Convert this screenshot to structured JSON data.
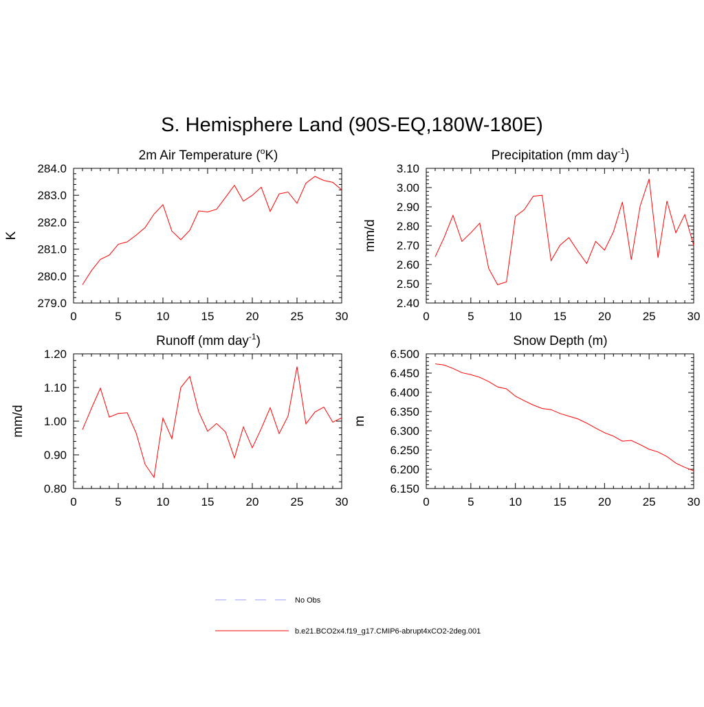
{
  "title": "S. Hemisphere Land (90S-EQ,180W-180E)",
  "legend": [
    {
      "label": "No Obs",
      "style": "dashed",
      "color": "#9999ff"
    },
    {
      "label": "b.e21.BCO2x4.f19_g17.CMIP6-abrupt4xCO2-2deg.001",
      "style": "solid",
      "color": "#ff0000"
    }
  ],
  "chart_data": [
    {
      "type": "line",
      "title": "2m Air Temperature (",
      "title_sup": "o",
      "title_tail": "K)",
      "ylabel": "K",
      "xlim": [
        0,
        30
      ],
      "ylim": [
        279.0,
        284.0
      ],
      "x_ticks": [
        0,
        5,
        10,
        15,
        20,
        25,
        30
      ],
      "x_tick_labels": [
        "0",
        "5",
        "10",
        "15",
        "20",
        "25",
        "30"
      ],
      "y_ticks": [
        279.0,
        280.0,
        281.0,
        282.0,
        283.0,
        284.0
      ],
      "y_tick_labels": [
        "279.0",
        "280.0",
        "281.0",
        "282.0",
        "283.0",
        "284.0"
      ],
      "x_minor_step": 1,
      "y_minor_step": 0.2,
      "line_color": "#ff0000",
      "x": [
        1,
        2,
        3,
        4,
        5,
        6,
        7,
        8,
        9,
        10,
        11,
        12,
        13,
        14,
        15,
        16,
        17,
        18,
        19,
        20,
        21,
        22,
        23,
        24,
        25,
        26,
        27,
        28,
        29,
        30
      ],
      "values": [
        279.68,
        280.2,
        280.62,
        280.78,
        281.18,
        281.27,
        281.52,
        281.8,
        282.3,
        282.65,
        281.67,
        281.35,
        281.7,
        282.42,
        282.38,
        282.48,
        282.92,
        283.37,
        282.78,
        283.0,
        283.3,
        282.4,
        283.05,
        283.12,
        282.7,
        283.45,
        283.7,
        283.55,
        283.48,
        283.2
      ]
    },
    {
      "type": "line",
      "title": "Precipitation (mm day",
      "title_sup": "-1",
      "title_tail": ")",
      "ylabel": "mm/d",
      "xlim": [
        0,
        30
      ],
      "ylim": [
        2.4,
        3.1
      ],
      "x_ticks": [
        0,
        5,
        10,
        15,
        20,
        25,
        30
      ],
      "x_tick_labels": [
        "0",
        "5",
        "10",
        "15",
        "20",
        "25",
        "30"
      ],
      "y_ticks": [
        2.4,
        2.5,
        2.6,
        2.7,
        2.8,
        2.9,
        3.0,
        3.1
      ],
      "y_tick_labels": [
        "2.40",
        "2.50",
        "2.60",
        "2.70",
        "2.80",
        "2.90",
        "3.00",
        "3.10"
      ],
      "x_minor_step": 1,
      "y_minor_step": 0.02,
      "line_color": "#ff0000",
      "x": [
        1,
        2,
        3,
        4,
        5,
        6,
        7,
        8,
        9,
        10,
        11,
        12,
        13,
        14,
        15,
        16,
        17,
        18,
        19,
        20,
        21,
        22,
        23,
        24,
        25,
        26,
        27,
        28,
        29,
        30
      ],
      "values": [
        2.64,
        2.74,
        2.855,
        2.72,
        2.765,
        2.815,
        2.58,
        2.495,
        2.51,
        2.85,
        2.885,
        2.955,
        2.96,
        2.62,
        2.7,
        2.74,
        2.67,
        2.605,
        2.72,
        2.675,
        2.77,
        2.925,
        2.625,
        2.905,
        3.045,
        2.635,
        2.93,
        2.765,
        2.86,
        2.7
      ]
    },
    {
      "type": "line",
      "title": "Runoff (mm day",
      "title_sup": "-1",
      "title_tail": ")",
      "ylabel": "mm/d",
      "xlim": [
        0,
        30
      ],
      "ylim": [
        0.8,
        1.2
      ],
      "x_ticks": [
        0,
        5,
        10,
        15,
        20,
        25,
        30
      ],
      "x_tick_labels": [
        "0",
        "5",
        "10",
        "15",
        "20",
        "25",
        "30"
      ],
      "y_ticks": [
        0.8,
        0.9,
        1.0,
        1.1,
        1.2
      ],
      "y_tick_labels": [
        "0.80",
        "0.90",
        "1.00",
        "1.10",
        "1.20"
      ],
      "x_minor_step": 1,
      "y_minor_step": 0.02,
      "line_color": "#ff0000",
      "x": [
        1,
        2,
        3,
        4,
        5,
        6,
        7,
        8,
        9,
        10,
        11,
        12,
        13,
        14,
        15,
        16,
        17,
        18,
        19,
        20,
        21,
        22,
        23,
        24,
        25,
        26,
        27,
        28,
        29,
        30
      ],
      "values": [
        0.975,
        1.038,
        1.098,
        1.012,
        1.023,
        1.025,
        0.965,
        0.872,
        0.833,
        1.009,
        0.948,
        1.1,
        1.133,
        1.028,
        0.97,
        0.993,
        0.968,
        0.891,
        0.983,
        0.921,
        0.978,
        1.04,
        0.963,
        1.015,
        1.162,
        0.992,
        1.027,
        1.042,
        0.997,
        1.01
      ]
    },
    {
      "type": "line",
      "title": "Snow Depth (m)",
      "title_sup": "",
      "title_tail": "",
      "ylabel": "m",
      "xlim": [
        0,
        30
      ],
      "ylim": [
        6.15,
        6.5
      ],
      "x_ticks": [
        0,
        5,
        10,
        15,
        20,
        25,
        30
      ],
      "x_tick_labels": [
        "0",
        "5",
        "10",
        "15",
        "20",
        "25",
        "30"
      ],
      "y_ticks": [
        6.15,
        6.2,
        6.25,
        6.3,
        6.35,
        6.4,
        6.45,
        6.5
      ],
      "y_tick_labels": [
        "6.150",
        "6.200",
        "6.250",
        "6.300",
        "6.350",
        "6.400",
        "6.450",
        "6.500"
      ],
      "x_minor_step": 1,
      "y_minor_step": 0.01,
      "line_color": "#ff0000",
      "x": [
        1,
        2,
        3,
        4,
        5,
        6,
        7,
        8,
        9,
        10,
        11,
        12,
        13,
        14,
        15,
        16,
        17,
        18,
        19,
        20,
        21,
        22,
        23,
        24,
        25,
        26,
        27,
        28,
        29,
        30
      ],
      "values": [
        6.474,
        6.471,
        6.462,
        6.451,
        6.446,
        6.439,
        6.428,
        6.414,
        6.409,
        6.39,
        6.378,
        6.367,
        6.358,
        6.355,
        6.345,
        6.338,
        6.331,
        6.32,
        6.307,
        6.295,
        6.286,
        6.273,
        6.275,
        6.264,
        6.252,
        6.245,
        6.233,
        6.216,
        6.205,
        6.196
      ]
    }
  ]
}
